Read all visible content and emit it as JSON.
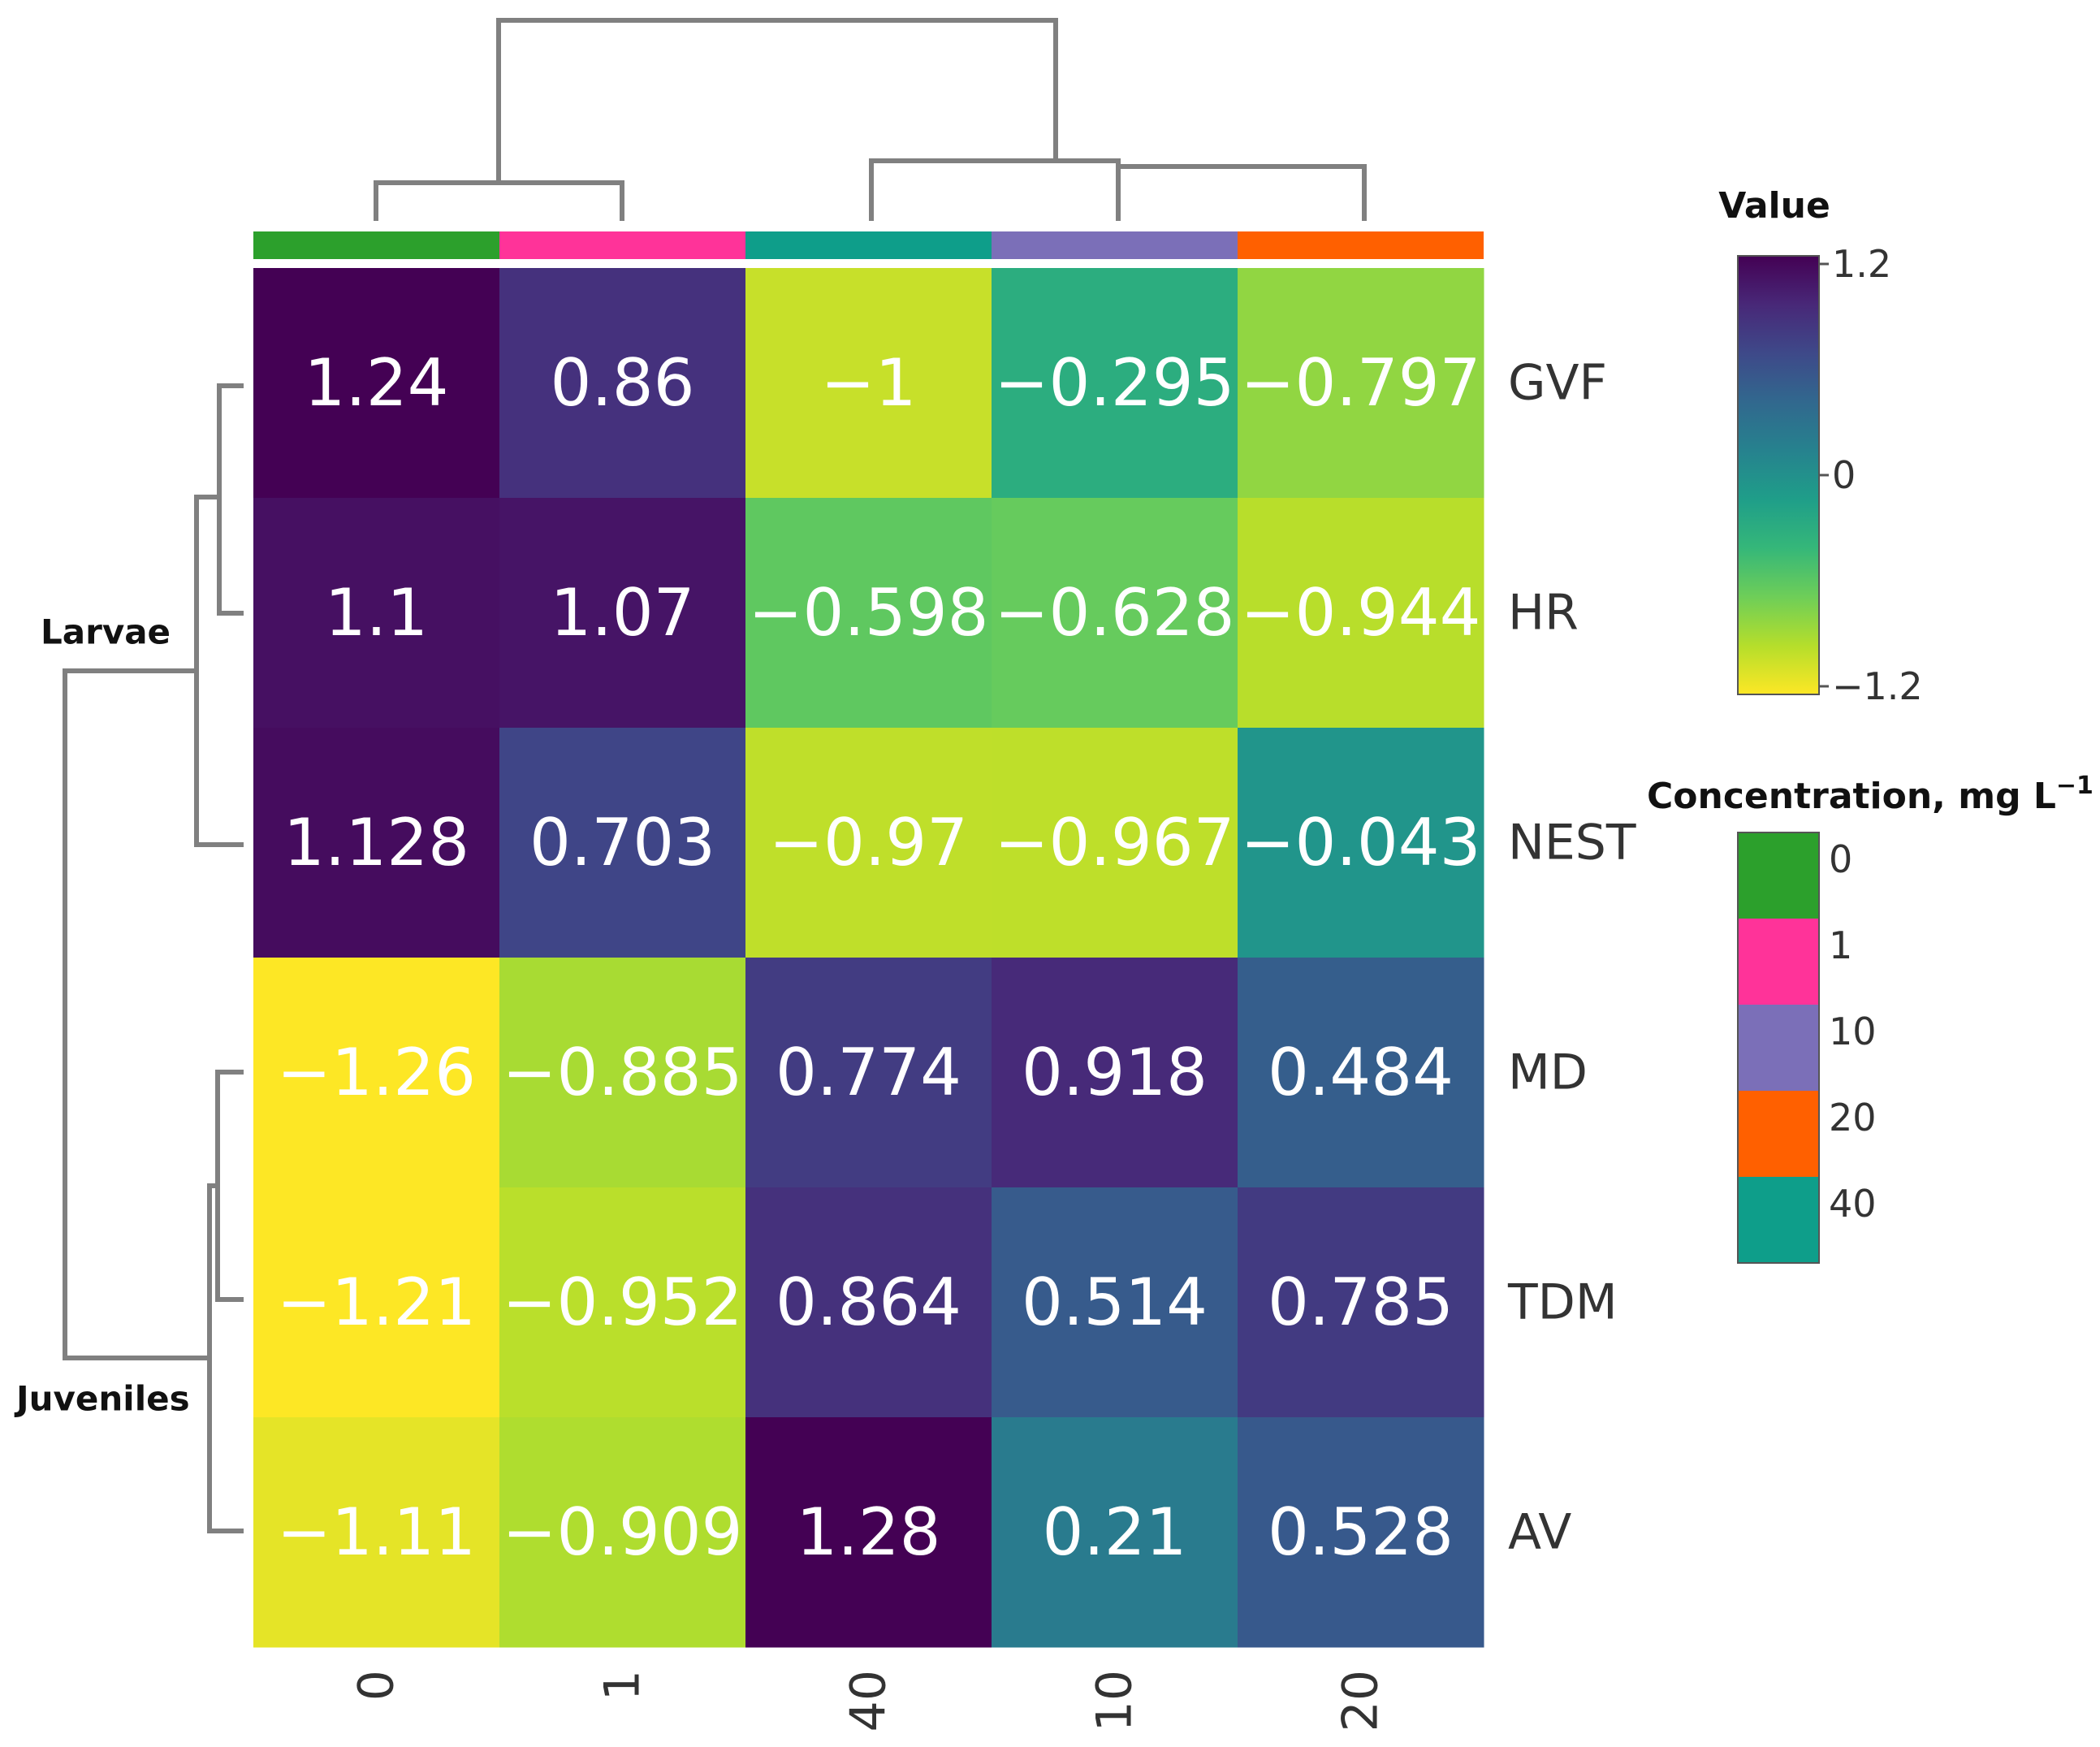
{
  "chart_data": {
    "type": "heatmap",
    "columns": [
      "0",
      "1",
      "40",
      "10",
      "20"
    ],
    "rows": [
      "GVF",
      "HR",
      "NEST",
      "MD",
      "TDM",
      "AV"
    ],
    "values": [
      [
        1.24,
        0.86,
        -1,
        -0.295,
        -0.797
      ],
      [
        1.1,
        1.07,
        -0.598,
        -0.628,
        -0.944
      ],
      [
        1.128,
        0.703,
        -0.97,
        -0.967,
        -0.043
      ],
      [
        -1.26,
        -0.885,
        0.774,
        0.918,
        0.484
      ],
      [
        -1.21,
        -0.952,
        0.864,
        0.514,
        0.785
      ],
      [
        -1.11,
        -0.909,
        1.28,
        0.21,
        0.528
      ]
    ],
    "cell_labels": [
      [
        "1.24",
        "0.86",
        "−1",
        "−0.295",
        "−0.797"
      ],
      [
        "1.1",
        "1.07",
        "−0.598",
        "−0.628",
        "−0.944"
      ],
      [
        "1.128",
        "0.703",
        "−0.97",
        "−0.967",
        "−0.043"
      ],
      [
        "−1.26",
        "−0.885",
        "0.774",
        "0.918",
        "0.484"
      ],
      [
        "−1.21",
        "−0.952",
        "0.864",
        "0.514",
        "0.785"
      ],
      [
        "−1.11",
        "−0.909",
        "1.28",
        "0.21",
        "0.528"
      ]
    ],
    "row_groups": [
      {
        "label": "Larvae",
        "rows": [
          "GVF",
          "HR",
          "NEST"
        ]
      },
      {
        "label": "Juveniles",
        "rows": [
          "MD",
          "TDM",
          "AV"
        ]
      }
    ],
    "column_annotation_colors": {
      "0": "#2ca02c",
      "1": "#ff3399",
      "40": "#0e9e8a",
      "10": "#7b6fb8",
      "20": "#ff6000"
    },
    "colorbar": {
      "title": "Value",
      "range": [
        -1.2,
        1.2
      ],
      "tick_labels": [
        "1.2",
        "0",
        "−1.2"
      ],
      "tick_values": [
        1.2,
        0,
        -1.2
      ],
      "colors": [
        "#fde725",
        "#b5de2b",
        "#6ece58",
        "#35b779",
        "#1f9e89",
        "#26828e",
        "#31688e",
        "#3e4989",
        "#482878",
        "#440154"
      ]
    },
    "annotation_legend": {
      "title": "Concentration, mg L",
      "title_superscript": "−1",
      "items": [
        {
          "label": "0",
          "color": "#2ca02c"
        },
        {
          "label": "1",
          "color": "#ff3399"
        },
        {
          "label": "10",
          "color": "#7b6fb8"
        },
        {
          "label": "20",
          "color": "#ff6000"
        },
        {
          "label": "40",
          "color": "#0e9e8a"
        }
      ]
    },
    "legend_position": "right"
  }
}
